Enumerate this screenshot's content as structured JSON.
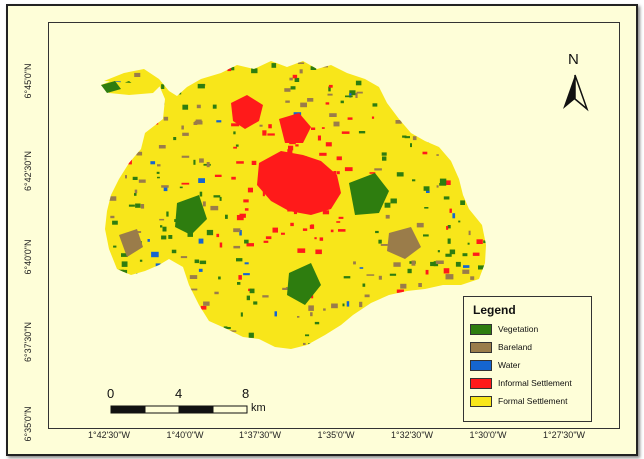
{
  "map": {
    "north_label": "N",
    "y_ticks": [
      "6°45'0\"N",
      "6°42'30\"N",
      "6°40'0\"N",
      "6°37'30\"N",
      "6°35'0\"N"
    ],
    "x_ticks": [
      "1°42'30\"W",
      "1°40'0\"W",
      "1°37'30\"W",
      "1°35'0\"W",
      "1°32'30\"W",
      "1°30'0\"W",
      "1°27'30\"W"
    ],
    "scale": {
      "ticks": [
        "0",
        "4",
        "8"
      ],
      "unit": "km"
    },
    "background_color": "#fefed8"
  },
  "legend": {
    "title": "Legend",
    "items": [
      {
        "label": "Vegetation",
        "color": "#2e7d0f"
      },
      {
        "label": "Bareland",
        "color": "#9a7c4a"
      },
      {
        "label": "Water",
        "color": "#1565d0"
      },
      {
        "label": "Informal Settlement",
        "color": "#ff1a1a"
      },
      {
        "label": "Formal Settlement",
        "color": "#f8e61a"
      }
    ]
  }
}
